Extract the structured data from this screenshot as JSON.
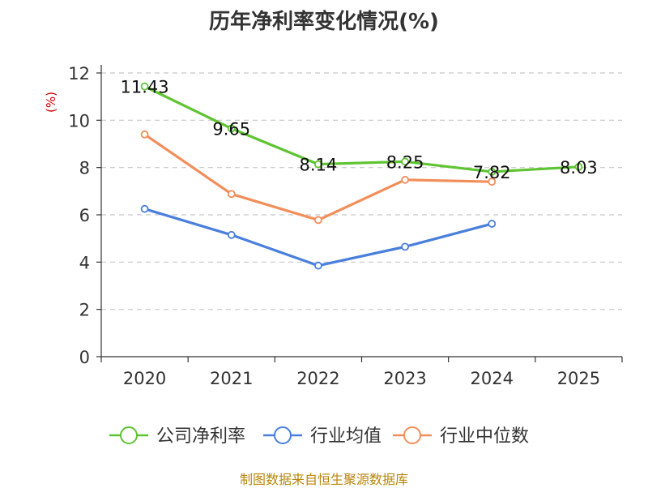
{
  "chart_data": {
    "type": "line",
    "title": "历年净利率变化情况(%)",
    "ylabel": "(%)",
    "xlabel": "",
    "categories": [
      "2020",
      "2021",
      "2022",
      "2023",
      "2024",
      "2025"
    ],
    "ylim": [
      0,
      12
    ],
    "yticks": [
      0,
      2,
      4,
      6,
      8,
      10,
      12
    ],
    "grid": "horizontal dashed",
    "legend_position": "bottom",
    "series": [
      {
        "name": "公司净利率",
        "color": "#5fc431",
        "values": [
          11.43,
          9.65,
          8.14,
          8.25,
          7.82,
          8.03
        ],
        "labels": [
          "11.43",
          "9.65",
          "8.14",
          "8.25",
          "7.82",
          "8.03"
        ]
      },
      {
        "name": "行业均值",
        "color": "#4a7fdc",
        "values": [
          6.25,
          5.15,
          3.85,
          4.65,
          5.62,
          null
        ]
      },
      {
        "name": "行业中位数",
        "color": "#f28e5a",
        "values": [
          9.4,
          6.88,
          5.78,
          7.48,
          7.4,
          null
        ]
      }
    ],
    "source": "制图数据来自恒生聚源数据库"
  }
}
